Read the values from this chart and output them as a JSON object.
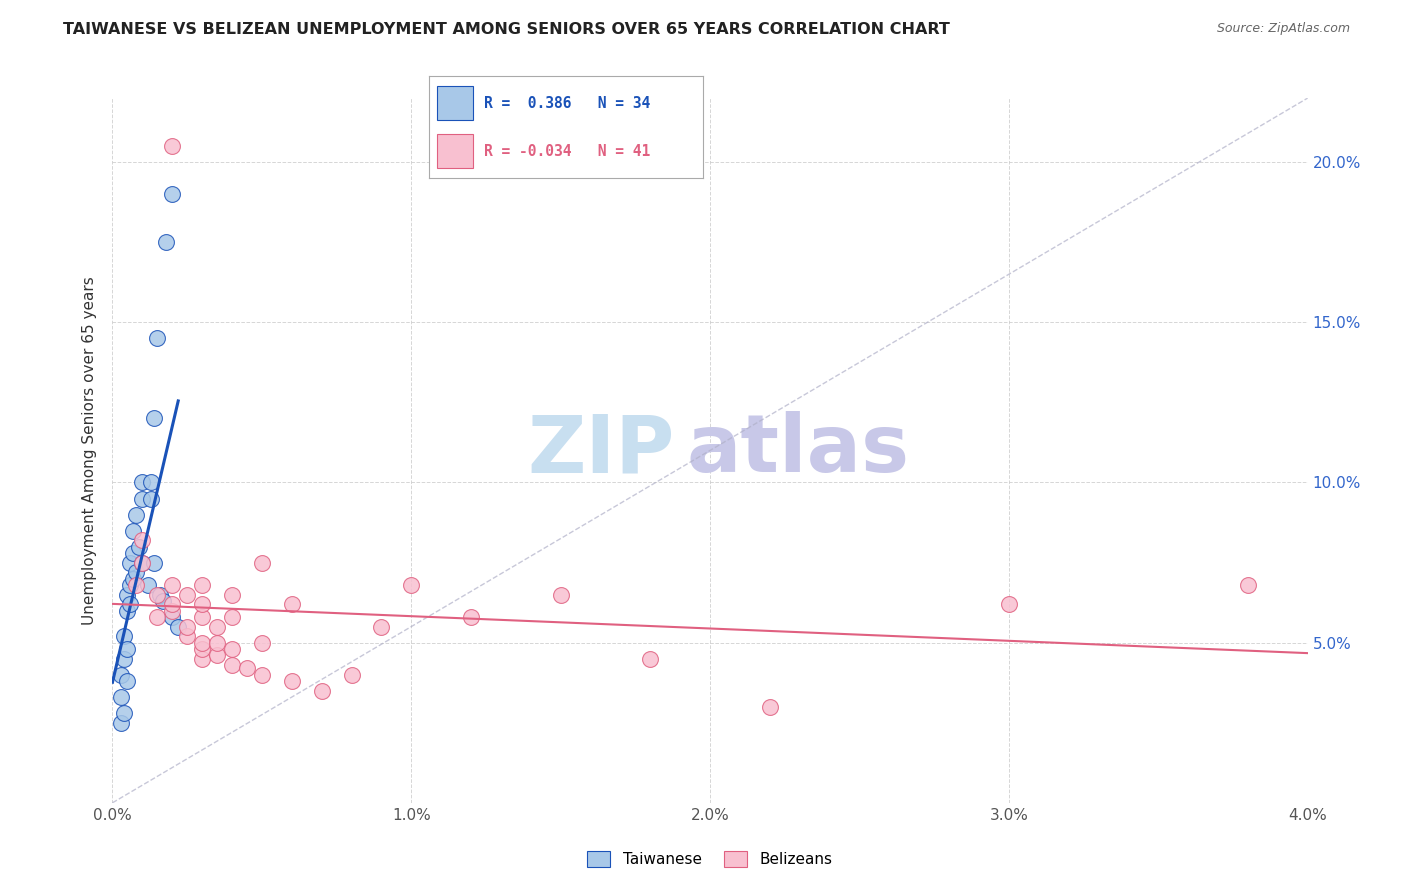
{
  "title": "TAIWANESE VS BELIZEAN UNEMPLOYMENT AMONG SENIORS OVER 65 YEARS CORRELATION CHART",
  "source": "Source: ZipAtlas.com",
  "ylabel": "Unemployment Among Seniors over 65 years",
  "xlim": [
    0.0,
    0.04
  ],
  "ylim": [
    0.0,
    0.22
  ],
  "yticks_right_labels": [
    "5.0%",
    "10.0%",
    "15.0%",
    "20.0%"
  ],
  "yticks_right_vals": [
    0.05,
    0.1,
    0.15,
    0.2
  ],
  "xticks": [
    0.0,
    0.01,
    0.02,
    0.03,
    0.04
  ],
  "xtick_labels": [
    "0.0%",
    "1.0%",
    "2.0%",
    "3.0%",
    "4.0%"
  ],
  "taiwanese_x": [
    0.0003,
    0.0003,
    0.0003,
    0.0004,
    0.0004,
    0.0004,
    0.0005,
    0.0005,
    0.0005,
    0.0005,
    0.0006,
    0.0006,
    0.0006,
    0.0007,
    0.0007,
    0.0007,
    0.0008,
    0.0008,
    0.0009,
    0.001,
    0.001,
    0.001,
    0.0012,
    0.0013,
    0.0013,
    0.0014,
    0.0014,
    0.0015,
    0.0016,
    0.0017,
    0.0018,
    0.002,
    0.002,
    0.0022
  ],
  "taiwanese_y": [
    0.025,
    0.033,
    0.04,
    0.028,
    0.045,
    0.052,
    0.038,
    0.048,
    0.06,
    0.065,
    0.062,
    0.068,
    0.075,
    0.07,
    0.078,
    0.085,
    0.072,
    0.09,
    0.08,
    0.075,
    0.095,
    0.1,
    0.068,
    0.095,
    0.1,
    0.12,
    0.075,
    0.145,
    0.065,
    0.063,
    0.175,
    0.058,
    0.19,
    0.055
  ],
  "belizean_x": [
    0.0008,
    0.001,
    0.001,
    0.0015,
    0.0015,
    0.002,
    0.002,
    0.002,
    0.002,
    0.0025,
    0.0025,
    0.0025,
    0.003,
    0.003,
    0.003,
    0.003,
    0.003,
    0.003,
    0.0035,
    0.0035,
    0.0035,
    0.004,
    0.004,
    0.004,
    0.004,
    0.0045,
    0.005,
    0.005,
    0.005,
    0.006,
    0.006,
    0.007,
    0.008,
    0.009,
    0.01,
    0.012,
    0.015,
    0.018,
    0.022,
    0.03,
    0.038
  ],
  "belizean_y": [
    0.068,
    0.075,
    0.082,
    0.058,
    0.065,
    0.06,
    0.062,
    0.068,
    0.205,
    0.052,
    0.055,
    0.065,
    0.045,
    0.048,
    0.05,
    0.058,
    0.062,
    0.068,
    0.046,
    0.05,
    0.055,
    0.043,
    0.048,
    0.058,
    0.065,
    0.042,
    0.04,
    0.05,
    0.075,
    0.038,
    0.062,
    0.035,
    0.04,
    0.055,
    0.068,
    0.058,
    0.065,
    0.045,
    0.03,
    0.062,
    0.068
  ],
  "taiwanese_color": "#a8c8e8",
  "taiwanese_line_color": "#1a52b8",
  "belizean_color": "#f8c0d0",
  "belizean_line_color": "#e06080",
  "r_taiwanese": "0.386",
  "n_taiwanese": "34",
  "r_belizean": "-0.034",
  "n_belizean": "41",
  "watermark_zip": "ZIP",
  "watermark_atlas": "atlas",
  "watermark_color_zip": "#c8dff0",
  "watermark_color_atlas": "#c8c8e8",
  "background_color": "#ffffff",
  "grid_color": "#cccccc"
}
